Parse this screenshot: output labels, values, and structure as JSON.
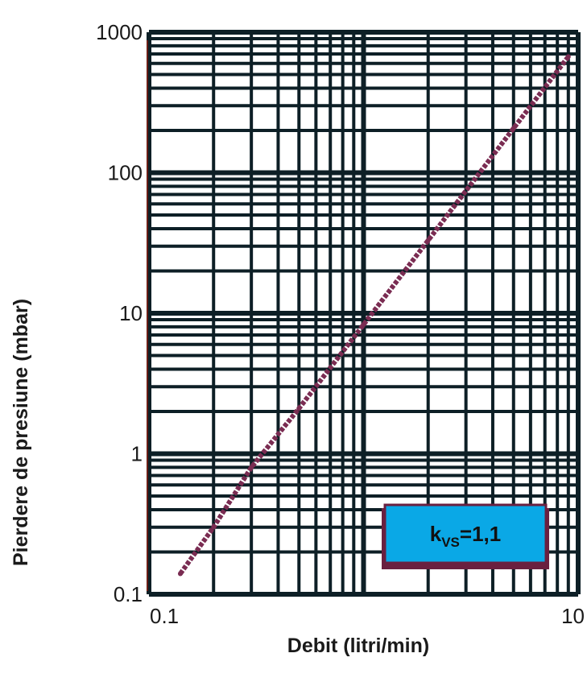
{
  "chart_data": {
    "type": "line",
    "title": "",
    "xlabel": "Debit (litri/min)",
    "ylabel": "Pierdere de presiune (mbar)",
    "xscale": "log",
    "yscale": "log",
    "xlim": [
      0.1,
      10
    ],
    "ylim": [
      0.1,
      1000
    ],
    "x_tick_labels": [
      {
        "value": 0.1,
        "label": "0.1"
      },
      {
        "value": 10,
        "label": "10"
      }
    ],
    "y_tick_labels": [
      {
        "value": 0.1,
        "label": "0.1"
      },
      {
        "value": 1,
        "label": "1"
      },
      {
        "value": 10,
        "label": "10"
      },
      {
        "value": 100,
        "label": "100"
      },
      {
        "value": 1000,
        "label": "1000"
      }
    ],
    "grid": true,
    "series": [
      {
        "values": [
          {
            "x": 0.14,
            "y": 0.14
          },
          {
            "x": 0.2,
            "y": 0.3
          },
          {
            "x": 0.3,
            "y": 0.8
          },
          {
            "x": 0.5,
            "y": 2.1
          },
          {
            "x": 1,
            "y": 8.3
          },
          {
            "x": 2,
            "y": 33
          },
          {
            "x": 5,
            "y": 207
          },
          {
            "x": 9,
            "y": 670
          }
        ]
      }
    ],
    "annotations": [
      {
        "base": "k",
        "subscript": "VS",
        "rest": "=1,1"
      }
    ],
    "colors": {
      "grid": "#0d1f26",
      "line": "#7a2c52",
      "annotation_fill": "#0aa8e6",
      "annotation_border": "#6a2040",
      "axis_edge": "#6b1e16"
    }
  }
}
